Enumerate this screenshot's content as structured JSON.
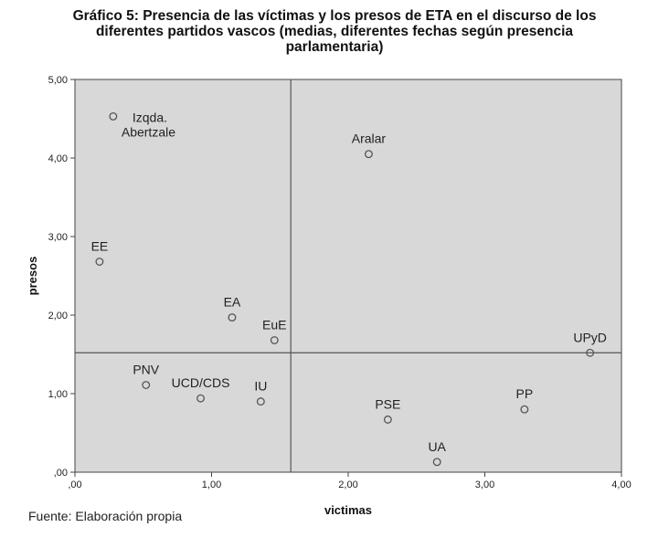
{
  "title": "Gráfico 5: Presencia de las víctimas y los presos de ETA en el discurso de los\ndiferentes partidos vascos (medias, diferentes fechas según presencia\nparlamentaria)",
  "source": "Fuente: Elaboración propia",
  "colors": {
    "plot_background": "#d8d8d8",
    "marker_stroke": "#555555",
    "reference_line": "#555555"
  },
  "chart_data": {
    "type": "scatter",
    "xlabel": "victimas",
    "ylabel": "presos",
    "xlim": [
      0,
      4
    ],
    "ylim": [
      0,
      5
    ],
    "x_ticks": [
      0,
      1,
      2,
      3,
      4
    ],
    "x_tick_labels": [
      ",00",
      "1,00",
      "2,00",
      "3,00",
      "4,00"
    ],
    "y_ticks": [
      0,
      1,
      2,
      3,
      4,
      5
    ],
    "y_tick_labels": [
      ",00",
      "1,00",
      "2,00",
      "3,00",
      "4,00",
      "5,00"
    ],
    "grid": false,
    "reference_lines": {
      "x": 1.58,
      "y": 1.52
    },
    "points": [
      {
        "label": "Izqda.\nAbertzale",
        "x": 0.28,
        "y": 4.53
      },
      {
        "label": "Aralar",
        "x": 2.15,
        "y": 4.05
      },
      {
        "label": "EE",
        "x": 0.18,
        "y": 2.68
      },
      {
        "label": "EA",
        "x": 1.15,
        "y": 1.97
      },
      {
        "label": "EuE",
        "x": 1.46,
        "y": 1.68
      },
      {
        "label": "UPyD",
        "x": 3.77,
        "y": 1.52
      },
      {
        "label": "PNV",
        "x": 0.52,
        "y": 1.11
      },
      {
        "label": "UCD/CDS",
        "x": 0.92,
        "y": 0.94
      },
      {
        "label": "IU",
        "x": 1.36,
        "y": 0.9
      },
      {
        "label": "PSE",
        "x": 2.29,
        "y": 0.67
      },
      {
        "label": "PP",
        "x": 3.29,
        "y": 0.8
      },
      {
        "label": "UA",
        "x": 2.65,
        "y": 0.13
      }
    ]
  }
}
